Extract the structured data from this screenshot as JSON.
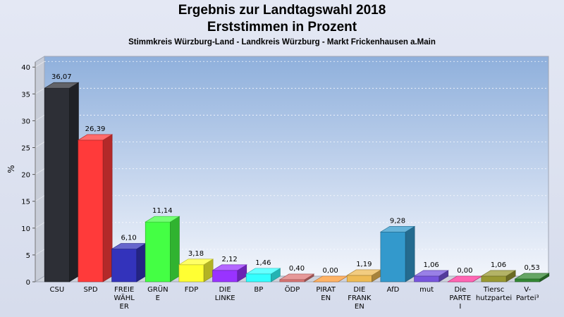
{
  "header": {
    "title_line1": "Ergebnis zur Landtagswahl 2018",
    "title_line2": "Erststimmen in Prozent",
    "subtitle": "Stimmkreis Würzburg-Land - Landkreis Würzburg - Markt Frickenhausen a.Main"
  },
  "chart_data": {
    "type": "bar",
    "title": "Ergebnis zur Landtagswahl 2018 Erststimmen in Prozent",
    "subtitle": "Stimmkreis Würzburg-Land - Landkreis Würzburg - Markt Frickenhausen a.Main",
    "ylabel": "%",
    "ylim": [
      0,
      42
    ],
    "yticks": [
      0,
      5,
      10,
      15,
      20,
      25,
      30,
      35,
      40
    ],
    "grid": true,
    "categories": [
      [
        "CSU"
      ],
      [
        "SPD"
      ],
      [
        "FREIE",
        "WÄHL",
        "ER"
      ],
      [
        "GRÜN",
        "E"
      ],
      [
        "FDP"
      ],
      [
        "DIE",
        "LINKE"
      ],
      [
        "BP"
      ],
      [
        "ÖDP"
      ],
      [
        "PIRAT",
        "EN"
      ],
      [
        "DIE",
        "FRANK",
        "EN"
      ],
      [
        "AfD"
      ],
      [
        "mut"
      ],
      [
        "Die",
        "PARTE",
        "I"
      ],
      [
        "Tiersc",
        "hutzpartei"
      ],
      [
        "V-",
        "Partei³"
      ]
    ],
    "values": [
      36.07,
      26.39,
      6.1,
      11.14,
      3.18,
      2.12,
      1.46,
      0.4,
      0.0,
      1.19,
      9.28,
      1.06,
      0.0,
      1.06,
      0.53
    ],
    "value_labels": [
      "36,07",
      "26,39",
      "6,10",
      "11,14",
      "3,18",
      "2,12",
      "1,46",
      "0,40",
      "0,00",
      "1,19",
      "9,28",
      "1,06",
      "0,00",
      "1,06",
      "0,53"
    ],
    "colors": [
      "#2d2f36",
      "#ff3a3a",
      "#3333bb",
      "#44ff44",
      "#ffff33",
      "#9933ff",
      "#33ffff",
      "#dd7777",
      "#ff9933",
      "#eebb55",
      "#3399cc",
      "#7755dd",
      "#ff3399",
      "#999933",
      "#338833"
    ]
  }
}
